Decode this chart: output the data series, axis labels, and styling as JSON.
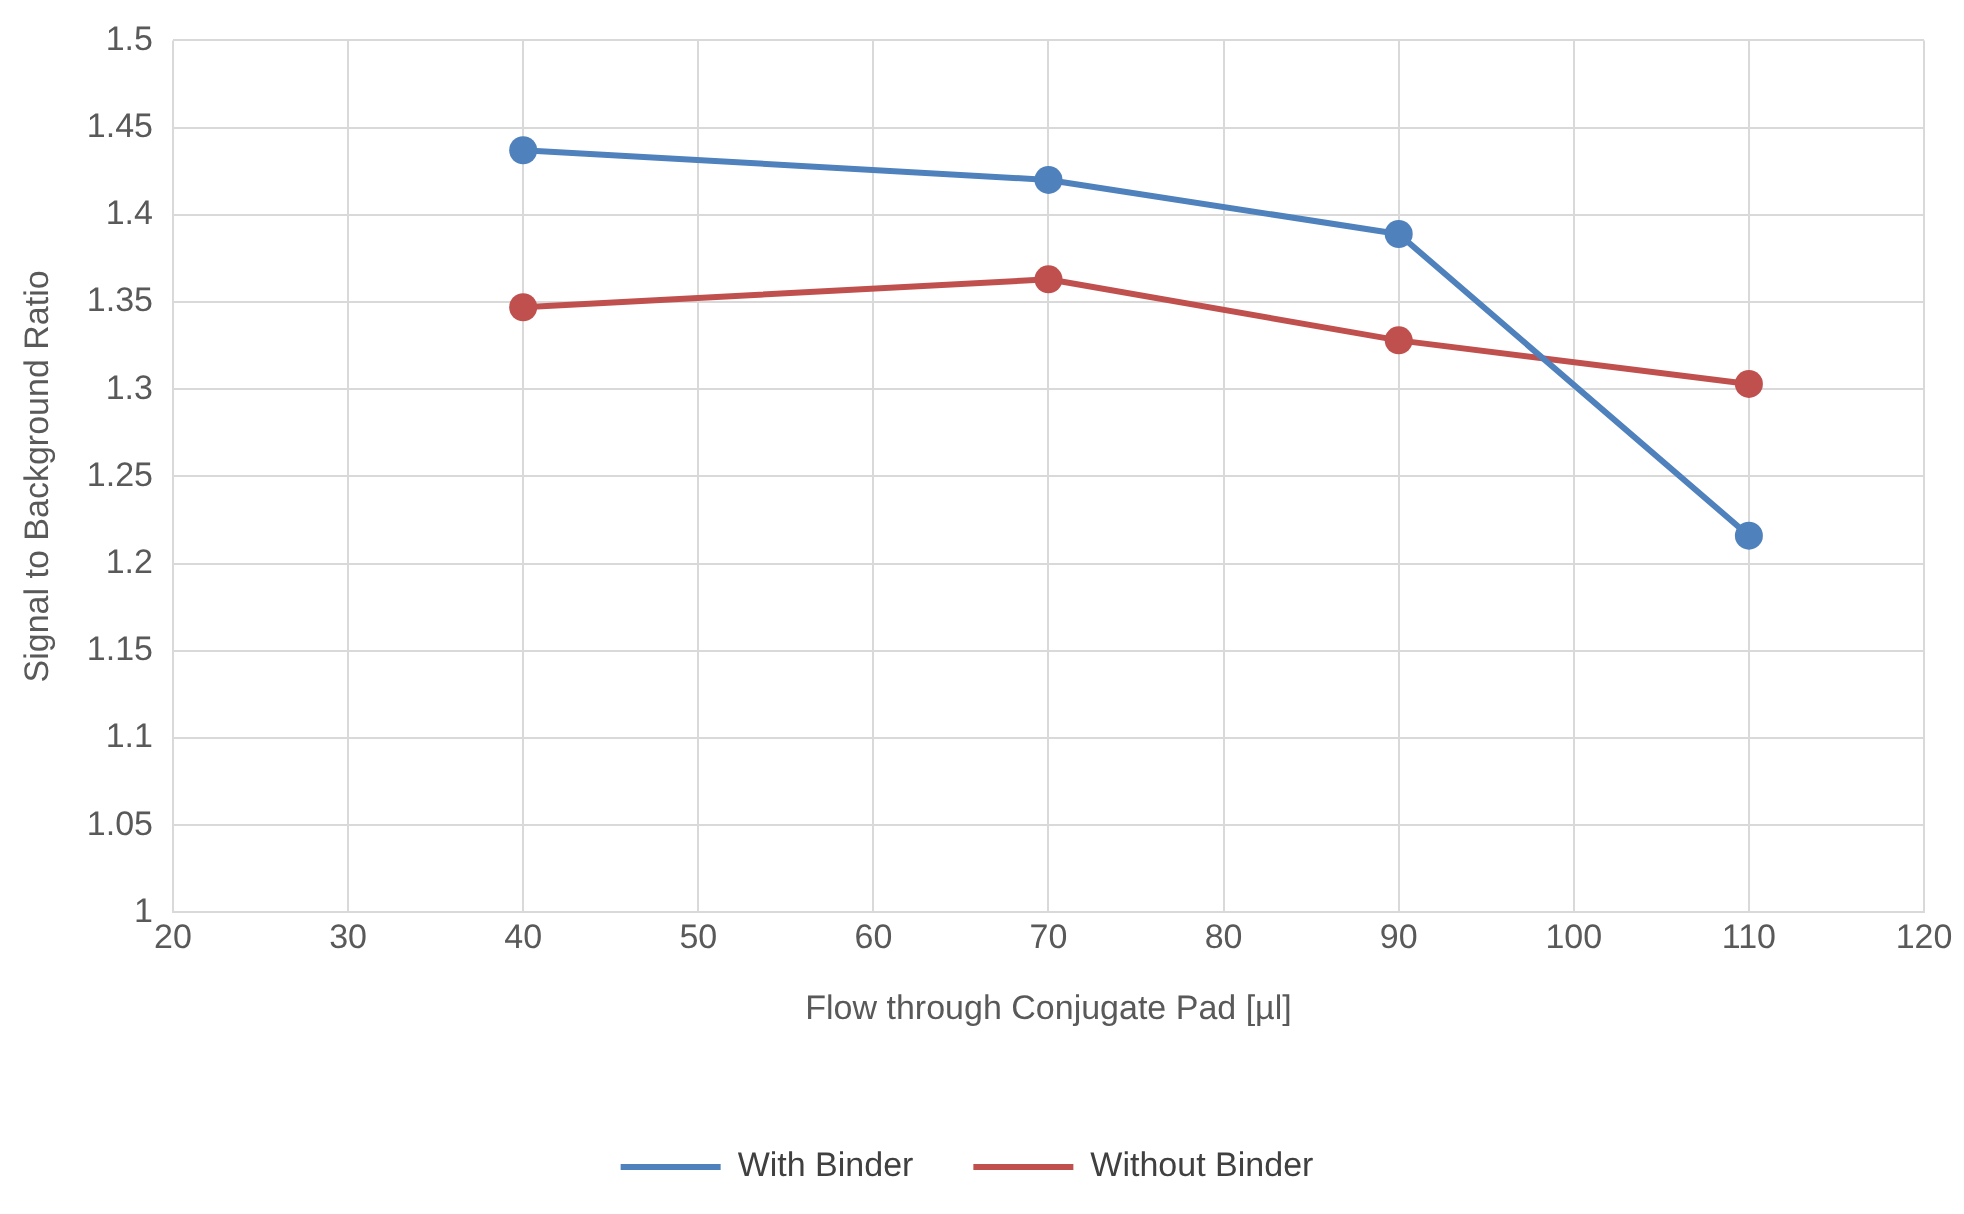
{
  "chart_data": {
    "type": "line",
    "xlabel": "Flow through Conjugate Pad [µl]",
    "ylabel": "Signal to Background Ratio",
    "x": [
      40,
      70,
      90,
      110
    ],
    "series": [
      {
        "name": "With Binder",
        "color": "#4f81bd",
        "values": [
          1.437,
          1.42,
          1.389,
          1.216
        ]
      },
      {
        "name": "Without Binder",
        "color": "#c0504d",
        "values": [
          1.347,
          1.363,
          1.328,
          1.303
        ]
      }
    ],
    "xlim": [
      20,
      120
    ],
    "xticks": [
      20,
      30,
      40,
      50,
      60,
      70,
      80,
      90,
      100,
      110,
      120
    ],
    "ylim": [
      1,
      1.5
    ],
    "yticks": [
      1,
      1.05,
      1.1,
      1.15,
      1.2,
      1.25,
      1.3,
      1.35,
      1.4,
      1.45,
      1.5
    ],
    "grid": true,
    "legend": "bottom",
    "marker": "circle",
    "line_style": "solid"
  }
}
